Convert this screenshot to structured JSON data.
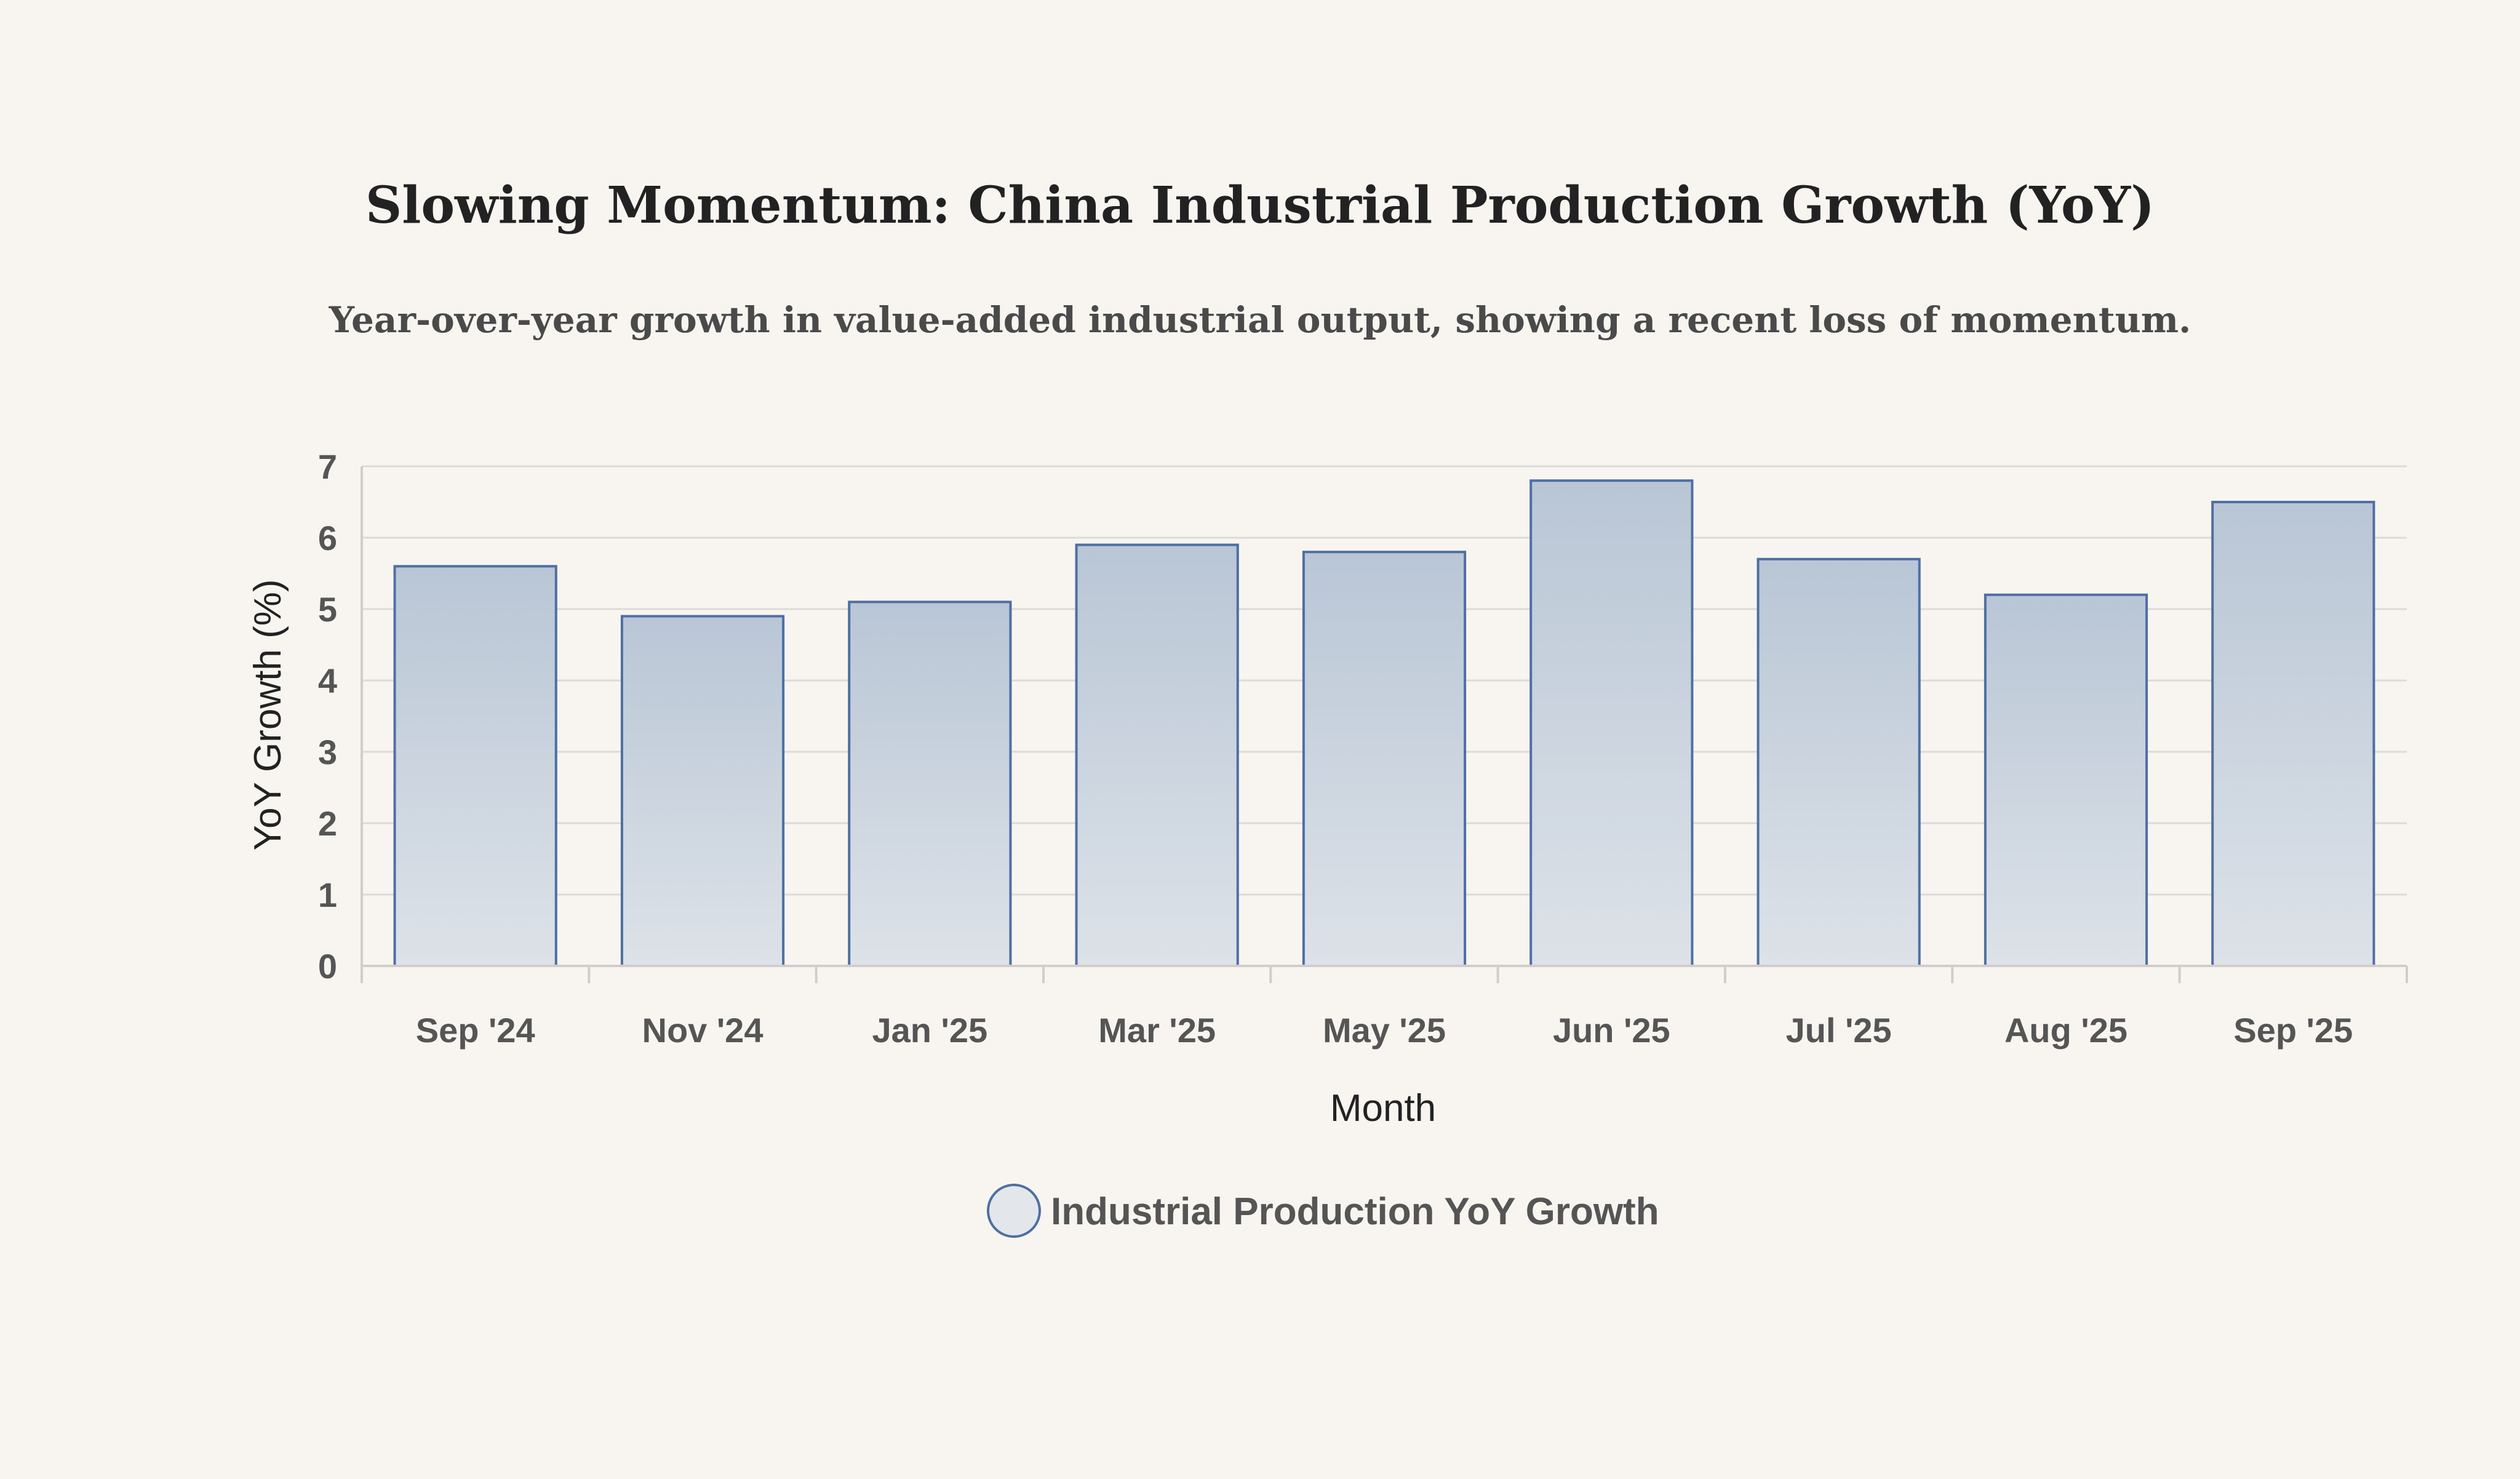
{
  "chart_data": {
    "type": "bar",
    "title": "Slowing Momentum: China Industrial Production Growth (YoY)",
    "subtitle": "Year-over-year growth in value-added industrial output, showing a recent loss of momentum.",
    "xlabel": "Month",
    "ylabel": "YoY Growth (%)",
    "categories": [
      "Sep '24",
      "Nov '24",
      "Jan '25",
      "Mar '25",
      "May '25",
      "Jun '25",
      "Jul '25",
      "Aug '25",
      "Sep '25"
    ],
    "series": [
      {
        "name": "Industrial Production YoY Growth",
        "values": [
          5.6,
          4.9,
          5.1,
          5.9,
          5.8,
          6.8,
          5.7,
          5.2,
          6.5
        ]
      }
    ],
    "ylim": [
      0,
      7
    ],
    "yticks": [
      0,
      1,
      2,
      3,
      4,
      5,
      6,
      7
    ],
    "grid": true,
    "legend_position": "bottom-center",
    "colors": {
      "bar_fill_top": "#b9c6d6",
      "bar_fill_bottom": "#dde2e8",
      "bar_stroke": "#4e6fa3",
      "background": "#f8f5f1"
    }
  }
}
